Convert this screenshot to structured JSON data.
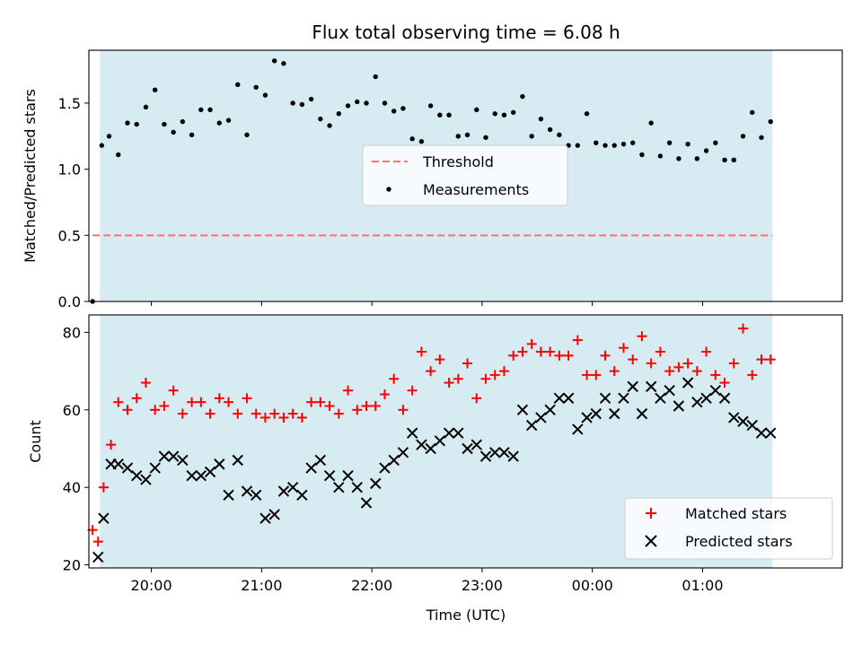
{
  "chart_data": [
    {
      "type": "scatter",
      "title": "Flux total observing time = 6.08 h",
      "xlabel": "",
      "ylabel": "Matched/Predicted stars",
      "xlim": [
        "19:26",
        "02:16"
      ],
      "ylim": [
        0,
        1.9
      ],
      "yticks": [
        "0.0",
        "0.5",
        "1.0",
        "1.5"
      ],
      "xticks": [
        "20:00",
        "21:00",
        "22:00",
        "23:00",
        "00:00",
        "01:00"
      ],
      "tick_labels_shown_x": false,
      "observing_span": [
        "19:32",
        "01:38"
      ],
      "span_color": "#add8e6",
      "legend": {
        "placement": "center",
        "entries": [
          "Threshold",
          "Measurements"
        ]
      },
      "series": [
        {
          "name": "Threshold",
          "style": "dashed-line",
          "color": "#ff7070",
          "x": [
            "19:28",
            "01:38"
          ],
          "y": [
            0.5,
            0.5
          ]
        },
        {
          "name": "Measurements",
          "style": "dot",
          "color": "#000000",
          "x": [
            "19:28",
            "19:33",
            "19:37",
            "19:42",
            "19:47",
            "19:52",
            "19:57",
            "20:02",
            "20:07",
            "20:12",
            "20:17",
            "20:22",
            "20:27",
            "20:32",
            "20:37",
            "20:42",
            "20:47",
            "20:52",
            "20:57",
            "21:02",
            "21:07",
            "21:12",
            "21:17",
            "21:22",
            "21:27",
            "21:32",
            "21:37",
            "21:42",
            "21:47",
            "21:52",
            "21:57",
            "22:02",
            "22:07",
            "22:12",
            "22:17",
            "22:22",
            "22:27",
            "22:32",
            "22:37",
            "22:42",
            "22:47",
            "22:52",
            "22:57",
            "23:02",
            "23:07",
            "23:12",
            "23:17",
            "23:22",
            "23:27",
            "23:32",
            "23:37",
            "23:42",
            "23:47",
            "23:52",
            "23:57",
            "00:02",
            "00:07",
            "00:12",
            "00:17",
            "00:22",
            "00:27",
            "00:32",
            "00:37",
            "00:42",
            "00:47",
            "00:52",
            "00:57",
            "01:02",
            "01:07",
            "01:12",
            "01:17",
            "01:22",
            "01:27",
            "01:32",
            "01:37"
          ],
          "y": [
            0.0,
            1.18,
            1.25,
            1.11,
            1.35,
            1.34,
            1.47,
            1.6,
            1.34,
            1.28,
            1.36,
            1.26,
            1.45,
            1.45,
            1.35,
            1.37,
            1.64,
            1.26,
            1.62,
            1.56,
            1.82,
            1.8,
            1.5,
            1.49,
            1.53,
            1.38,
            1.33,
            1.42,
            1.48,
            1.51,
            1.5,
            1.7,
            1.5,
            1.44,
            1.46,
            1.23,
            1.21,
            1.48,
            1.41,
            1.41,
            1.25,
            1.26,
            1.45,
            1.24,
            1.42,
            1.41,
            1.43,
            1.55,
            1.25,
            1.38,
            1.3,
            1.26,
            1.18,
            1.18,
            1.42,
            1.2,
            1.18,
            1.18,
            1.19,
            1.2,
            1.11,
            1.35,
            1.1,
            1.2,
            1.08,
            1.19,
            1.08,
            1.14,
            1.2,
            1.07,
            1.07,
            1.25,
            1.43,
            1.24,
            1.36
          ]
        }
      ]
    },
    {
      "type": "scatter",
      "title": "",
      "xlabel": "Time (UTC)",
      "ylabel": "Count",
      "xlim": [
        "19:26",
        "02:16"
      ],
      "ylim": [
        19.2,
        84.5
      ],
      "yticks": [
        "20",
        "40",
        "60",
        "80"
      ],
      "xticks": [
        "20:00",
        "21:00",
        "22:00",
        "23:00",
        "00:00",
        "01:00"
      ],
      "observing_span": [
        "19:32",
        "01:38"
      ],
      "span_color": "#add8e6",
      "legend": {
        "placement": "lower-right",
        "entries": [
          "Matched stars",
          "Predicted stars"
        ]
      },
      "series": [
        {
          "name": "Matched stars",
          "style": "plus",
          "color": "#ff0000",
          "x": [
            "19:28",
            "19:31",
            "19:34",
            "19:38",
            "19:42",
            "19:47",
            "19:52",
            "19:57",
            "20:02",
            "20:07",
            "20:12",
            "20:17",
            "20:22",
            "20:27",
            "20:32",
            "20:37",
            "20:42",
            "20:47",
            "20:52",
            "20:57",
            "21:02",
            "21:07",
            "21:12",
            "21:17",
            "21:22",
            "21:27",
            "21:32",
            "21:37",
            "21:42",
            "21:47",
            "21:52",
            "21:57",
            "22:02",
            "22:07",
            "22:12",
            "22:17",
            "22:22",
            "22:27",
            "22:32",
            "22:37",
            "22:42",
            "22:47",
            "22:52",
            "22:57",
            "23:02",
            "23:07",
            "23:12",
            "23:17",
            "23:22",
            "23:27",
            "23:32",
            "23:37",
            "23:42",
            "23:47",
            "23:52",
            "23:57",
            "00:02",
            "00:07",
            "00:12",
            "00:17",
            "00:22",
            "00:27",
            "00:32",
            "00:37",
            "00:42",
            "00:47",
            "00:52",
            "00:57",
            "01:02",
            "01:07",
            "01:12",
            "01:17",
            "01:22",
            "01:27",
            "01:32",
            "01:37"
          ],
          "y": [
            29,
            26,
            40,
            51,
            62,
            60,
            63,
            67,
            60,
            61,
            65,
            59,
            62,
            62,
            59,
            63,
            62,
            59,
            63,
            59,
            58,
            59,
            58,
            59,
            58,
            62,
            62,
            61,
            59,
            65,
            60,
            61,
            61,
            64,
            68,
            60,
            65,
            75,
            70,
            73,
            67,
            68,
            72,
            63,
            68,
            69,
            70,
            74,
            75,
            77,
            75,
            75,
            74,
            74,
            78,
            69,
            69,
            74,
            70,
            76,
            73,
            79,
            72,
            75,
            70,
            71,
            72,
            70,
            75,
            69,
            67,
            72,
            81,
            69,
            73,
            73
          ]
        },
        {
          "name": "Predicted stars",
          "style": "x",
          "color": "#000000",
          "x": [
            "19:31",
            "19:34",
            "19:38",
            "19:42",
            "19:47",
            "19:52",
            "19:57",
            "20:02",
            "20:07",
            "20:12",
            "20:17",
            "20:22",
            "20:27",
            "20:32",
            "20:37",
            "20:42",
            "20:47",
            "20:52",
            "20:57",
            "21:02",
            "21:07",
            "21:12",
            "21:17",
            "21:22",
            "21:27",
            "21:32",
            "21:37",
            "21:42",
            "21:47",
            "21:52",
            "21:57",
            "22:02",
            "22:07",
            "22:12",
            "22:17",
            "22:22",
            "22:27",
            "22:32",
            "22:37",
            "22:42",
            "22:47",
            "22:52",
            "22:57",
            "23:02",
            "23:07",
            "23:12",
            "23:17",
            "23:22",
            "23:27",
            "23:32",
            "23:37",
            "23:42",
            "23:47",
            "23:52",
            "23:57",
            "00:02",
            "00:07",
            "00:12",
            "00:17",
            "00:22",
            "00:27",
            "00:32",
            "00:37",
            "00:42",
            "00:47",
            "00:52",
            "00:57",
            "01:02",
            "01:07",
            "01:12",
            "01:17",
            "01:22",
            "01:27",
            "01:32",
            "01:37"
          ],
          "y": [
            22,
            32,
            46,
            46,
            45,
            43,
            42,
            45,
            48,
            48,
            47,
            43,
            43,
            44,
            46,
            38,
            47,
            39,
            38,
            32,
            33,
            39,
            40,
            38,
            45,
            47,
            43,
            40,
            43,
            40,
            36,
            41,
            45,
            47,
            49,
            54,
            51,
            50,
            52,
            54,
            54,
            50,
            51,
            48,
            49,
            49,
            48,
            60,
            56,
            58,
            60,
            63,
            63,
            55,
            58,
            59,
            63,
            59,
            63,
            66,
            59,
            66,
            63,
            65,
            61,
            67,
            62,
            63,
            65,
            63,
            58,
            57,
            56,
            54,
            54
          ]
        }
      ]
    }
  ]
}
